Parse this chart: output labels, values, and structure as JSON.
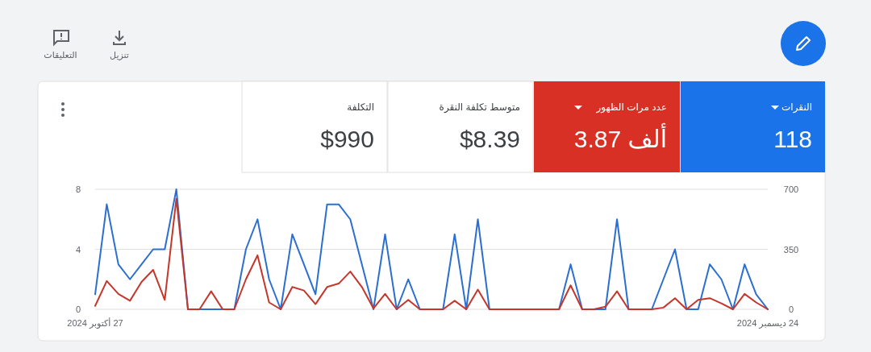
{
  "chart_data": [
    {
      "type": "other",
      "annotations": [
        "النقرات",
        "118",
        "عدد مرات الظهور",
        "3.87 ألف",
        "متوسط تكلفة النقرة",
        "$8.39",
        "التكلفة",
        "$990",
        "تنزيل",
        "التعليقات"
      ]
    },
    {
      "type": "line",
      "x": [
        "2024-10-27",
        "2024-10-28",
        "2024-10-29",
        "2024-10-30",
        "2024-10-31",
        "2024-11-01",
        "2024-11-02",
        "2024-11-03",
        "2024-11-04",
        "2024-11-05",
        "2024-11-06",
        "2024-11-07",
        "2024-11-08",
        "2024-11-09",
        "2024-11-10",
        "2024-11-11",
        "2024-11-12",
        "2024-11-13",
        "2024-11-14",
        "2024-11-15",
        "2024-11-16",
        "2024-11-17",
        "2024-11-18",
        "2024-11-19",
        "2024-11-20",
        "2024-11-21",
        "2024-11-22",
        "2024-11-23",
        "2024-11-24",
        "2024-11-25",
        "2024-11-26",
        "2024-11-27",
        "2024-11-28",
        "2024-11-29",
        "2024-11-30",
        "2024-12-01",
        "2024-12-02",
        "2024-12-03",
        "2024-12-04",
        "2024-12-05",
        "2024-12-06",
        "2024-12-07",
        "2024-12-08",
        "2024-12-09",
        "2024-12-10",
        "2024-12-11",
        "2024-12-12",
        "2024-12-13",
        "2024-12-14",
        "2024-12-15",
        "2024-12-16",
        "2024-12-17",
        "2024-12-18",
        "2024-12-19",
        "2024-12-20",
        "2024-12-21",
        "2024-12-22",
        "2024-12-23",
        "2024-12-24"
      ],
      "series": [
        {
          "color": "#2a6fd1",
          "values": [
            1,
            7,
            3,
            2,
            3,
            4,
            4,
            8,
            0,
            0,
            0,
            0,
            0,
            4,
            6,
            2,
            0,
            5,
            3,
            1,
            7,
            7,
            6,
            3,
            0,
            5,
            0,
            2,
            0,
            0,
            0,
            5,
            0,
            6,
            0,
            0,
            0,
            0,
            0,
            0,
            0,
            3,
            0,
            0,
            0,
            6,
            0,
            0,
            0,
            2,
            4,
            0,
            0,
            3,
            2,
            0,
            3,
            1,
            0
          ]
        },
        {
          "color": "#c5362b",
          "axis": "y2",
          "values": [
            20,
            165,
            90,
            50,
            160,
            230,
            55,
            645,
            0,
            0,
            105,
            0,
            0,
            175,
            315,
            40,
            0,
            130,
            110,
            30,
            130,
            150,
            220,
            130,
            5,
            90,
            0,
            55,
            0,
            0,
            0,
            50,
            0,
            115,
            0,
            0,
            0,
            0,
            0,
            0,
            0,
            140,
            0,
            0,
            15,
            105,
            0,
            0,
            0,
            10,
            65,
            0,
            55,
            65,
            35,
            0,
            90,
            40,
            0
          ]
        }
      ],
      "xlim": [
        "2024-10-27",
        "2024-12-24"
      ],
      "xticks": [
        {
          "value": "2024-10-27",
          "label": "27 أكتوبر 2024"
        },
        {
          "value": "2024-12-24",
          "label": "24 ديسمبر 2024"
        }
      ],
      "ylim": [
        0,
        8
      ],
      "yticks": [
        0,
        4,
        8
      ],
      "y2lim": [
        0,
        700
      ],
      "y2ticks": [
        0,
        350,
        700
      ],
      "grid": "y",
      "marker": "none",
      "line_style": "solid"
    }
  ]
}
